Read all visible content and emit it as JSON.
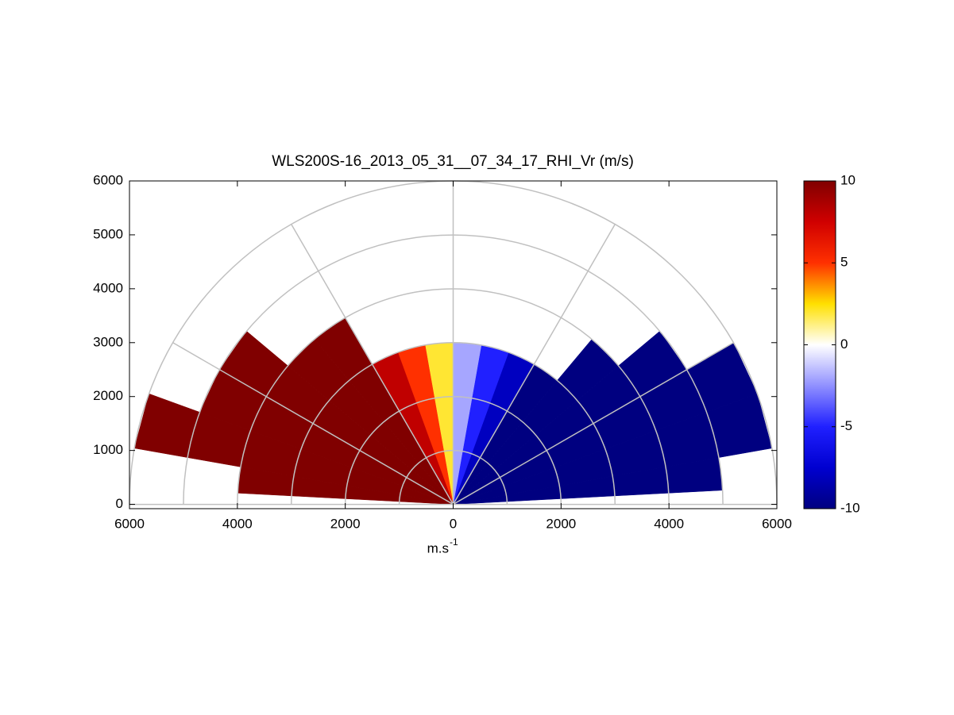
{
  "chart_data": {
    "type": "polar-rhi",
    "title": "WLS200S-16_2013_05_31__07_34_17_RHI_Vr (m/s)",
    "x_label": "m.s",
    "x_label_sup": "-1",
    "xlim": [
      -6000,
      6000
    ],
    "xticks": [
      {
        "value": -6000,
        "label": "6000"
      },
      {
        "value": -4000,
        "label": "4000"
      },
      {
        "value": -2000,
        "label": "2000"
      },
      0,
      2000,
      4000,
      6000
    ],
    "ylim": [
      -80,
      6000
    ],
    "yticks": [
      0,
      1000,
      2000,
      3000,
      4000,
      5000,
      6000
    ],
    "rings": [
      1000,
      2000,
      3000,
      4000,
      5000,
      6000
    ],
    "spokes": [
      0,
      30,
      60,
      90,
      120,
      150,
      180
    ],
    "angle_edges": [
      3,
      10,
      20,
      30,
      40,
      50,
      60,
      70,
      80,
      90,
      100,
      110,
      120,
      130,
      140,
      150,
      160,
      170,
      177
    ],
    "range_edges": [
      0,
      1000,
      2000,
      3000,
      4000,
      5000,
      6000
    ],
    "values": [
      [
        -10,
        -10,
        -10,
        -10,
        -10,
        null
      ],
      [
        -10,
        -10,
        -10,
        -10,
        -10,
        -10
      ],
      [
        -10,
        -10,
        -10,
        -10,
        -10,
        -10
      ],
      [
        -10,
        -10,
        -10,
        -10,
        -10,
        null
      ],
      [
        -10,
        -10,
        -10,
        -10,
        null,
        null
      ],
      [
        -10,
        -10,
        -10,
        null,
        null,
        null
      ],
      [
        -8,
        -8,
        -8,
        null,
        null,
        null
      ],
      [
        -5,
        -5,
        -5,
        null,
        null,
        null
      ],
      [
        -2,
        -2,
        -2,
        null,
        null,
        null
      ],
      [
        2,
        2,
        2,
        null,
        null,
        null
      ],
      [
        5,
        5,
        5,
        null,
        null,
        null
      ],
      [
        8,
        8,
        8,
        null,
        null,
        null
      ],
      [
        10,
        10,
        10,
        10,
        null,
        null
      ],
      [
        10,
        10,
        10,
        10,
        null,
        null
      ],
      [
        10,
        10,
        10,
        10,
        10,
        null
      ],
      [
        10,
        10,
        10,
        10,
        10,
        null
      ],
      [
        10,
        10,
        10,
        10,
        10,
        10
      ],
      [
        10,
        10,
        10,
        10,
        null,
        null
      ]
    ],
    "colormap": [
      "#000080",
      "#0000d0",
      "#2020ff",
      "#9090ff",
      "#ffffff",
      "#ffe000",
      "#ff3000",
      "#d00000",
      "#800000"
    ],
    "colorbar": {
      "lim": [
        -10,
        10
      ],
      "ticks": [
        10,
        5,
        0,
        -5,
        -10
      ]
    },
    "grid_color": "#c0c0c0"
  }
}
